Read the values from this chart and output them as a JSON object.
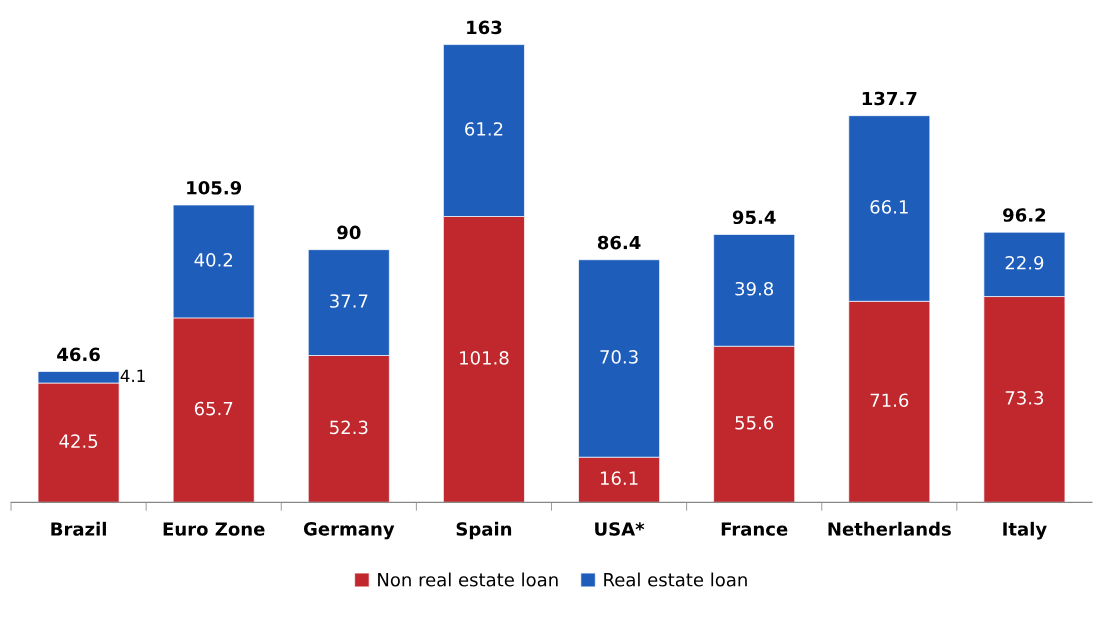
{
  "chart_data": {
    "type": "bar",
    "stacked": true,
    "data_labels": true,
    "legend": "bottom",
    "grid": false,
    "categories": [
      "Brazil",
      "Euro Zone",
      "Germany",
      "Spain",
      "USA*",
      "France",
      "Netherlands",
      "Italy"
    ],
    "series": [
      {
        "name": "Non real estate loan",
        "color": "#c0282d",
        "values": [
          42.5,
          65.7,
          52.3,
          101.8,
          16.1,
          55.6,
          71.6,
          73.3
        ]
      },
      {
        "name": "Real estate loan",
        "color": "#1f5dbb",
        "values": [
          4.1,
          40.2,
          37.7,
          61.2,
          70.3,
          39.8,
          66.1,
          22.9
        ]
      }
    ],
    "totals": [
      "46.6",
      "105.9",
      "90",
      "163",
      "86.4",
      "95.4",
      "137.7",
      "96.2"
    ]
  }
}
